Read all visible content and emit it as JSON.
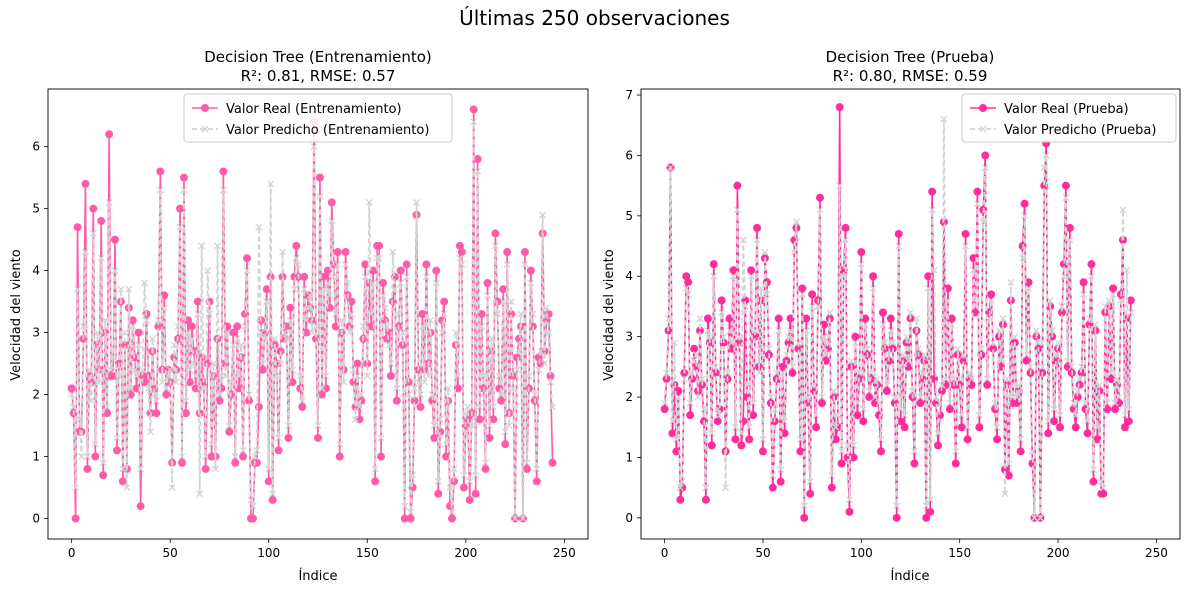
{
  "suptitle": "Últimas 250 observaciones",
  "colors": {
    "real_train": "#ff5ba8",
    "real_test": "#ff2d9a",
    "pred": "#d3d3d3"
  },
  "chart_data": [
    {
      "type": "line",
      "title_line1": "Decision Tree (Entrenamiento)",
      "title_line2": "R²: 0.81, RMSE: 0.57",
      "xlabel": "Índice",
      "ylabel": "Velocidad del viento",
      "xlim": [
        -12,
        262
      ],
      "ylim": [
        -0.33,
        6.93
      ],
      "xticks": [
        0,
        50,
        100,
        150,
        200,
        250
      ],
      "yticks": [
        0,
        1,
        2,
        3,
        4,
        5,
        6
      ],
      "legend_position": "upper center",
      "series": [
        {
          "name": "Valor Real (Entrenamiento)",
          "marker": "circle",
          "style": "solid",
          "values": [
            2.1,
            1.7,
            0.0,
            4.7,
            1.4,
            1.4,
            2.9,
            5.4,
            0.8,
            2.3,
            2.2,
            5.0,
            1.0,
            2.8,
            2.4,
            4.8,
            0.7,
            3.0,
            1.7,
            6.2,
            2.3,
            2.3,
            4.5,
            1.1,
            2.5,
            3.5,
            0.6,
            2.8,
            0.8,
            3.4,
            2.0,
            3.2,
            2.6,
            2.1,
            3.0,
            0.2,
            2.3,
            2.2,
            3.3,
            2.3,
            1.7,
            2.7,
            2.1,
            1.7,
            3.1,
            5.6,
            2.4,
            3.6,
            2.0,
            2.4,
            2.2,
            0.9,
            2.6,
            2.4,
            2.9,
            5.0,
            0.9,
            5.5,
            1.7,
            3.2,
            2.2,
            3.1,
            2.7,
            2.1,
            3.5,
            1.7,
            2.6,
            2.2,
            0.8,
            2.5,
            3.5,
            1.0,
            2.3,
            1.0,
            2.9,
            1.9,
            2.1,
            5.6,
            2.5,
            3.1,
            1.4,
            2.0,
            3.0,
            0.9,
            3.1,
            2.1,
            2.6,
            1.0,
            3.3,
            4.2,
            1.9,
            0.0,
            0.0,
            0.9,
            0.9,
            1.8,
            3.2,
            2.4,
            3.0,
            3.7,
            0.6,
            3.9,
            0.3,
            2.8,
            2.5,
            1.1,
            2.7,
            3.9,
            2.9,
            3.1,
            1.3,
            3.4,
            2.2,
            3.9,
            4.4,
            3.9,
            2.1,
            1.8,
            3.9,
            3.0,
            3.6,
            3.4,
            3.2,
            6.4,
            2.9,
            1.3,
            5.5,
            2.0,
            3.9,
            2.1,
            4.0,
            3.4,
            5.1,
            4.1,
            3.1,
            4.3,
            1.0,
            3.0,
            2.4,
            4.3,
            3.6,
            3.1,
            3.5,
            2.2,
            1.8,
            2.5,
            1.6,
            1.9,
            2.9,
            4.1,
            2.5,
            3.8,
            3.1,
            4.0,
            0.6,
            4.4,
            4.4,
            1.0,
            3.8,
            3.2,
            2.9,
            3.0,
            2.3,
            3.5,
            3.9,
            1.9,
            3.1,
            4.0,
            2.8,
            0.0,
            4.1,
            2.2,
            0.0,
            0.5,
            1.9,
            4.9,
            2.4,
            1.8,
            3.3,
            2.4,
            4.1,
            2.5,
            3.0,
            1.9,
            1.3,
            4.0,
            0.4,
            1.4,
            3.2,
            3.5,
            1.0,
            1.9,
            0.2,
            0.0,
            0.6,
            2.8,
            2.1,
            4.4,
            4.3,
            0.5,
            1.5,
            1.6,
            0.3,
            1.7,
            6.6,
            0.4,
            5.8,
            1.6,
            3.3,
            2.1,
            0.8,
            3.8,
            1.3,
            2.7,
            1.6,
            4.6,
            3.5,
            2.1,
            1.9,
            3.7,
            1.2,
            4.3,
            1.7,
            3.3,
            2.3,
            0.0,
            2.6,
            2.9,
            3.1,
            0.0,
            4.3,
            0.8,
            2.1,
            4.0,
            3.1,
            1.9,
            0.6,
            2.6,
            2.5,
            4.6,
            2.7,
            3.2,
            3.3,
            2.3,
            0.9
          ]
        },
        {
          "name": "Valor Predicho (Entrenamiento)",
          "marker": "x",
          "style": "dashed",
          "values": [
            2.0,
            1.8,
            0.5,
            3.7,
            1.6,
            1.0,
            3.1,
            4.3,
            1.0,
            2.4,
            1.9,
            4.6,
            1.2,
            3.0,
            2.2,
            4.2,
            0.9,
            3.2,
            1.8,
            5.1,
            2.4,
            2.6,
            4.0,
            1.3,
            2.3,
            3.7,
            0.8,
            3.0,
            0.5,
            3.7,
            2.1,
            3.1,
            2.4,
            2.3,
            2.8,
            0.8,
            2.4,
            3.8,
            3.2,
            2.1,
            1.4,
            2.9,
            2.0,
            1.9,
            3.2,
            5.3,
            2.2,
            3.4,
            2.1,
            2.3,
            2.4,
            0.5,
            2.8,
            2.2,
            3.1,
            4.7,
            1.0,
            5.3,
            1.9,
            3.0,
            2.4,
            2.9,
            2.5,
            2.3,
            3.3,
            0.4,
            4.4,
            2.1,
            1.0,
            4.0,
            3.3,
            1.2,
            2.5,
            0.8,
            4.4,
            2.0,
            2.3,
            5.3,
            2.3,
            3.0,
            1.5,
            2.2,
            2.8,
            1.0,
            2.9,
            2.3,
            2.8,
            1.1,
            3.1,
            4.0,
            2.0,
            0.3,
            0.2,
            1.0,
            1.1,
            4.7,
            3.0,
            2.5,
            2.9,
            3.5,
            0.8,
            5.4,
            0.4,
            2.9,
            2.3,
            1.3,
            2.5,
            4.3,
            3.0,
            2.9,
            1.5,
            3.2,
            2.4,
            3.7,
            4.2,
            4.1,
            2.3,
            1.9,
            3.7,
            3.2,
            3.4,
            3.6,
            3.0,
            6.0,
            3.1,
            1.5,
            5.2,
            2.1,
            3.7,
            2.3,
            3.8,
            3.6,
            4.8,
            3.9,
            3.3,
            4.1,
            1.2,
            3.2,
            2.2,
            4.1,
            3.8,
            3.0,
            3.3,
            2.4,
            1.6,
            2.3,
            1.8,
            2.0,
            3.1,
            3.9,
            2.3,
            5.1,
            3.3,
            3.8,
            0.8,
            4.2,
            4.2,
            1.3,
            3.6,
            3.4,
            3.1,
            2.8,
            2.5,
            4.3,
            3.7,
            2.1,
            3.3,
            3.8,
            3.0,
            0.2,
            3.9,
            2.0,
            0.1,
            0.7,
            2.1,
            5.1,
            2.2,
            2.0,
            3.1,
            2.2,
            3.9,
            2.3,
            3.2,
            2.0,
            1.5,
            3.8,
            0.6,
            1.6,
            3.0,
            3.3,
            1.2,
            2.1,
            0.5,
            0.1,
            0.8,
            3.0,
            2.3,
            4.2,
            4.1,
            0.7,
            1.7,
            1.8,
            0.6,
            1.5,
            6.4,
            0.7,
            5.6,
            1.8,
            3.1,
            2.3,
            0.9,
            3.6,
            1.5,
            2.9,
            1.8,
            4.4,
            3.3,
            2.3,
            2.0,
            3.5,
            1.4,
            4.1,
            1.5,
            3.5,
            2.1,
            0.0,
            2.4,
            2.7,
            3.3,
            0.0,
            4.1,
            0.9,
            2.3,
            3.8,
            3.3,
            2.0,
            0.8,
            2.4,
            2.7,
            4.9,
            2.5,
            3.4,
            3.0,
            2.2,
            1.8
          ]
        }
      ]
    },
    {
      "type": "line",
      "title_line1": "Decision Tree (Prueba)",
      "title_line2": "R²: 0.80, RMSE: 0.59",
      "xlabel": "Índice",
      "ylabel": "Velocidad del viento",
      "xlim": [
        -12,
        262
      ],
      "ylim": [
        -0.35,
        7.1
      ],
      "xticks": [
        0,
        50,
        100,
        150,
        200,
        250
      ],
      "yticks": [
        0,
        1,
        2,
        3,
        4,
        5,
        6,
        7
      ],
      "legend_position": "upper right",
      "series": [
        {
          "name": "Valor Real (Prueba)",
          "marker": "circle",
          "style": "solid",
          "values": [
            1.8,
            2.3,
            3.1,
            5.8,
            1.4,
            2.2,
            1.1,
            2.1,
            0.3,
            0.5,
            2.4,
            4.0,
            3.9,
            1.7,
            2.3,
            2.8,
            2.5,
            2.1,
            3.1,
            2.2,
            1.6,
            0.3,
            3.3,
            2.9,
            1.2,
            4.2,
            2.4,
            1.6,
            1.8,
            3.6,
            2.9,
            1.1,
            2.3,
            3.3,
            2.8,
            4.1,
            1.3,
            5.5,
            2.9,
            1.2,
            1.6,
            3.6,
            2.0,
            1.3,
            4.1,
            1.7,
            3.0,
            4.8,
            2.5,
            3.6,
            1.1,
            4.3,
            3.9,
            2.7,
            1.9,
            0.5,
            1.6,
            2.3,
            3.3,
            0.6,
            2.5,
            1.4,
            2.6,
            2.9,
            3.3,
            2.4,
            4.6,
            4.8,
            2.8,
            1.1,
            3.8,
            0.0,
            3.3,
            1.9,
            0.4,
            3.7,
            2.1,
            1.5,
            3.6,
            5.3,
            1.9,
            3.2,
            2.6,
            2.8,
            3.3,
            0.5,
            2.0,
            1.3,
            1.5,
            6.8,
            0.9,
            4.1,
            4.8,
            1.0,
            0.1,
            2.5,
            1.0,
            3.0,
            1.7,
            2.3,
            4.4,
            1.6,
            3.3,
            2.7,
            2.0,
            2.3,
            4.0,
            1.9,
            2.2,
            1.7,
            1.1,
            3.4,
            2.8,
            2.1,
            2.6,
            3.3,
            2.8,
            1.9,
            0.0,
            4.7,
            1.6,
            2.6,
            1.5,
            2.9,
            2.5,
            3.3,
            2.0,
            0.9,
            3.1,
            2.7,
            1.9,
            2.3,
            2.6,
            0.0,
            4.0,
            0.1,
            5.4,
            2.3,
            1.9,
            1.2,
            1.7,
            2.1,
            4.9,
            2.2,
            3.8,
            1.8,
            3.3,
            2.2,
            0.9,
            2.7,
            2.2,
            1.5,
            2.6,
            4.7,
            1.3,
            2.3,
            2.2,
            4.3,
            3.4,
            5.4,
            1.5,
            2.7,
            5.1,
            6.0,
            2.2,
            3.4,
            3.7,
            2.8,
            1.8,
            1.3,
            3.0,
            2.5,
            3.2,
            0.8,
            2.2,
            0.7,
            3.6,
            1.9,
            2.9,
            1.9,
            2.1,
            1.1,
            4.5,
            5.2,
            2.6,
            3.9,
            2.4,
            0.9,
            0.0,
            3.0,
            2.8,
            0.0,
            2.4,
            5.5,
            6.2,
            1.4,
            3.5,
            3.0,
            1.6,
            2.6,
            2.8,
            1.5,
            3.4,
            4.2,
            5.5,
            2.5,
            4.8,
            2.4,
            1.8,
            1.5,
            2.0,
            2.2,
            2.4,
            3.9,
            1.8,
            1.4,
            3.2,
            4.2,
            0.6,
            3.1,
            1.3,
            2.1,
            0.4,
            0.4,
            3.4,
            1.8,
            3.5,
            2.3,
            3.8,
            1.8,
            2.2,
            1.9,
            3.7,
            4.6,
            1.5,
            3.3,
            1.6,
            3.6
          ]
        },
        {
          "name": "Valor Predicho (Prueba)",
          "marker": "x",
          "style": "dashed",
          "values": [
            1.9,
            2.4,
            3.3,
            5.8,
            1.6,
            2.9,
            1.3,
            2.0,
            0.5,
            0.6,
            2.3,
            3.8,
            3.7,
            1.9,
            2.4,
            2.6,
            2.7,
            2.0,
            3.3,
            2.3,
            1.8,
            0.5,
            3.1,
            3.0,
            1.4,
            4.0,
            2.5,
            1.8,
            1.7,
            3.4,
            3.0,
            0.5,
            2.4,
            3.1,
            2.9,
            4.0,
            1.5,
            5.1,
            3.0,
            1.4,
            4.6,
            3.5,
            2.2,
            1.5,
            4.0,
            1.9,
            3.1,
            4.6,
            2.4,
            3.8,
            1.3,
            4.4,
            3.7,
            2.8,
            2.0,
            0.7,
            1.8,
            2.4,
            3.1,
            0.8,
            2.4,
            1.6,
            2.7,
            3.0,
            3.1,
            2.5,
            4.4,
            4.9,
            2.9,
            1.3,
            3.7,
            0.2,
            3.1,
            2.0,
            0.6,
            3.5,
            2.2,
            1.7,
            3.5,
            5.1,
            2.0,
            3.0,
            2.7,
            2.9,
            3.4,
            0.7,
            2.1,
            1.5,
            1.7,
            5.5,
            1.1,
            4.0,
            4.6,
            1.2,
            0.3,
            2.6,
            1.2,
            2.9,
            1.9,
            2.4,
            4.2,
            1.8,
            3.2,
            2.8,
            2.1,
            2.4,
            3.8,
            2.0,
            2.3,
            1.9,
            1.3,
            3.2,
            2.9,
            2.2,
            2.7,
            3.1,
            2.9,
            2.0,
            0.2,
            4.5,
            1.8,
            2.7,
            1.7,
            3.0,
            2.6,
            3.4,
            2.1,
            1.1,
            3.3,
            2.8,
            2.0,
            2.4,
            2.7,
            0.2,
            3.8,
            0.3,
            5.1,
            4.1,
            2.0,
            1.4,
            1.9,
            2.2,
            6.6,
            2.3,
            3.6,
            1.9,
            3.2,
            2.3,
            1.1,
            2.8,
            2.3,
            1.7,
            2.7,
            4.5,
            1.5,
            2.4,
            2.3,
            4.1,
            3.5,
            5.2,
            1.7,
            2.8,
            4.9,
            5.8,
            2.3,
            3.3,
            3.6,
            2.9,
            1.9,
            1.5,
            3.1,
            2.6,
            3.3,
            0.4,
            2.3,
            0.9,
            3.9,
            2.0,
            3.0,
            2.0,
            2.2,
            1.3,
            4.3,
            5.0,
            2.7,
            3.8,
            2.5,
            1.1,
            0.0,
            3.1,
            2.9,
            0.0,
            2.5,
            5.8,
            6.0,
            1.6,
            3.6,
            3.1,
            1.8,
            2.7,
            2.9,
            1.7,
            3.5,
            4.0,
            5.3,
            2.6,
            4.6,
            2.5,
            1.9,
            1.7,
            2.1,
            2.3,
            2.5,
            3.7,
            1.9,
            1.6,
            3.3,
            4.0,
            0.8,
            3.2,
            1.5,
            2.2,
            0.6,
            0.5,
            3.5,
            1.9,
            3.6,
            2.4,
            3.7,
            1.9,
            2.3,
            2.0,
            3.6,
            5.1,
            1.7,
            4.1,
            1.8,
            3.4
          ]
        }
      ]
    }
  ]
}
